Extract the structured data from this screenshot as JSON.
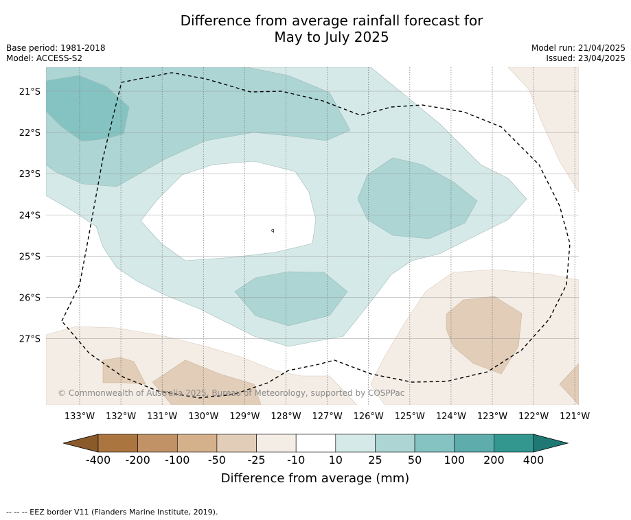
{
  "title_line1": "Difference from average rainfall forecast for",
  "title_line2": "May to July 2025",
  "base_period": "Base period: 1981-2018",
  "model": "Model: ACCESS-S2",
  "model_run": "Model run: 21/04/2025",
  "issued": "Issued: 23/04/2025",
  "copyright": "© Commonwealth of Australia 2025, Bureau of Meteorology, supported by COSPPac",
  "footnote": "-- -- -- EEZ border V11 (Flanders Marine Institute, 2019).",
  "map": {
    "lon_labels": [
      "133°W",
      "132°W",
      "131°W",
      "130°W",
      "129°W",
      "128°W",
      "127°W",
      "126°W",
      "125°W",
      "124°W",
      "123°W",
      "122°W",
      "121°W"
    ],
    "lat_labels": [
      "21°S",
      "22°S",
      "23°S",
      "24°S",
      "25°S",
      "26°S",
      "27°S"
    ],
    "small_label": "q"
  },
  "colorbar": {
    "label": "Difference from average (mm)",
    "ticks": [
      "-400",
      "-200",
      "-100",
      "-50",
      "-25",
      "-10",
      "10",
      "25",
      "50",
      "100",
      "200",
      "400"
    ],
    "colors": [
      "#ab7540",
      "#c09266",
      "#d4b08b",
      "#e2cdb8",
      "#f4ede6",
      "#ffffff",
      "#d5eae8",
      "#acd5d4",
      "#84c3c1",
      "#5eacac",
      "#33978f"
    ],
    "extend_low": "#8a5a2b",
    "extend_high": "#1f7874"
  }
}
